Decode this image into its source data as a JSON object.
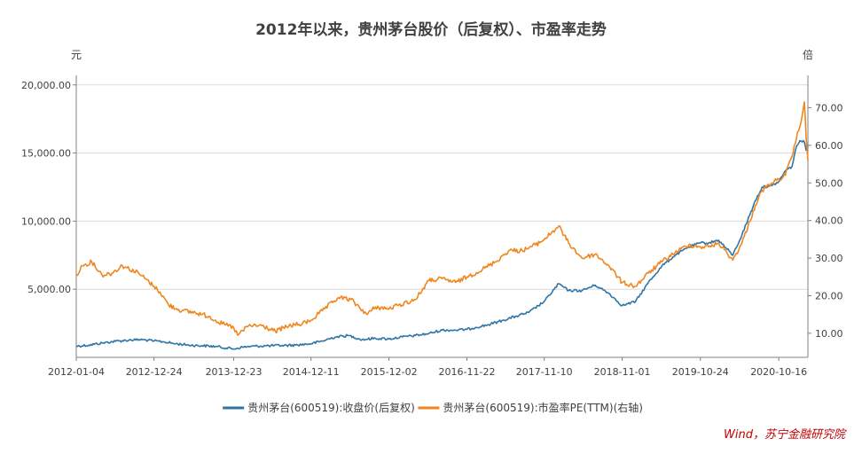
{
  "chart_data": {
    "type": "line",
    "title": "2012年以来，贵州茅台股价（后复权）、市盈率走势",
    "left_unit": "元",
    "right_unit": "倍",
    "x_ticks": [
      "2012-01-04",
      "2012-12-24",
      "2013-12-23",
      "2014-12-11",
      "2015-12-02",
      "2016-11-22",
      "2017-11-10",
      "2018-11-01",
      "2019-10-24",
      "2020-10-16"
    ],
    "left_ticks": [
      "5,000.00",
      "10,000.00",
      "15,000.00",
      "20,000.00"
    ],
    "right_ticks": [
      "10.00",
      "20.00",
      "30.00",
      "40.00",
      "50.00",
      "60.00",
      "70.00"
    ],
    "ylim_left": [
      0,
      20700
    ],
    "ylim_right": [
      3.6,
      78.6
    ],
    "x_range": [
      "2012-01-04",
      "2021-02-26"
    ],
    "legend_position": "bottom",
    "series": [
      {
        "name": "贵州茅台(600519):收盘价(后复权)",
        "axis": "left",
        "color": "#2e75a6",
        "points": [
          [
            "2012-01-04",
            820
          ],
          [
            "2012-03-01",
            900
          ],
          [
            "2012-05-01",
            1050
          ],
          [
            "2012-07-01",
            1180
          ],
          [
            "2012-09-01",
            1270
          ],
          [
            "2012-11-01",
            1300
          ],
          [
            "2012-12-24",
            1200
          ],
          [
            "2013-02-01",
            1150
          ],
          [
            "2013-04-01",
            1000
          ],
          [
            "2013-06-01",
            900
          ],
          [
            "2013-08-01",
            850
          ],
          [
            "2013-10-01",
            800
          ],
          [
            "2013-12-23",
            620
          ],
          [
            "2014-02-01",
            750
          ],
          [
            "2014-04-01",
            820
          ],
          [
            "2014-06-01",
            850
          ],
          [
            "2014-08-01",
            870
          ],
          [
            "2014-10-01",
            900
          ],
          [
            "2014-12-11",
            1000
          ],
          [
            "2015-02-01",
            1200
          ],
          [
            "2015-04-01",
            1500
          ],
          [
            "2015-06-01",
            1600
          ],
          [
            "2015-08-01",
            1300
          ],
          [
            "2015-10-01",
            1400
          ],
          [
            "2015-12-02",
            1350
          ],
          [
            "2016-02-01",
            1500
          ],
          [
            "2016-04-01",
            1600
          ],
          [
            "2016-06-01",
            1750
          ],
          [
            "2016-08-01",
            2000
          ],
          [
            "2016-10-01",
            2000
          ],
          [
            "2016-11-22",
            2050
          ],
          [
            "2017-01-01",
            2200
          ],
          [
            "2017-03-01",
            2400
          ],
          [
            "2017-05-01",
            2700
          ],
          [
            "2017-07-01",
            3000
          ],
          [
            "2017-09-01",
            3300
          ],
          [
            "2017-11-10",
            4100
          ],
          [
            "2018-01-15",
            5400
          ],
          [
            "2018-03-01",
            4900
          ],
          [
            "2018-05-01",
            4900
          ],
          [
            "2018-07-01",
            5300
          ],
          [
            "2018-09-01",
            4700
          ],
          [
            "2018-11-01",
            3800
          ],
          [
            "2019-01-01",
            4100
          ],
          [
            "2019-03-01",
            5500
          ],
          [
            "2019-05-01",
            6700
          ],
          [
            "2019-07-01",
            7500
          ],
          [
            "2019-09-01",
            8100
          ],
          [
            "2019-10-24",
            8400
          ],
          [
            "2019-12-01",
            8400
          ],
          [
            "2020-01-15",
            8600
          ],
          [
            "2020-03-20",
            7500
          ],
          [
            "2020-05-01",
            9000
          ],
          [
            "2020-07-01",
            11500
          ],
          [
            "2020-08-01",
            12500
          ],
          [
            "2020-09-15",
            12600
          ],
          [
            "2020-10-16",
            12900
          ],
          [
            "2020-11-15",
            13700
          ],
          [
            "2020-12-15",
            14000
          ],
          [
            "2021-01-05",
            15500
          ],
          [
            "2021-01-20",
            15900
          ],
          [
            "2021-02-10",
            15800
          ],
          [
            "2021-02-18",
            15200
          ],
          [
            "2021-02-26",
            15500
          ]
        ]
      },
      {
        "name": "贵州茅台(600519):市盈率PE(TTM)(右轴)",
        "axis": "right",
        "color": "#f0861e",
        "points": [
          [
            "2012-01-04",
            25.5
          ],
          [
            "2012-02-01",
            28
          ],
          [
            "2012-03-15",
            29
          ],
          [
            "2012-05-01",
            25.5
          ],
          [
            "2012-06-15",
            26
          ],
          [
            "2012-08-01",
            28
          ],
          [
            "2012-10-15",
            26
          ],
          [
            "2012-12-24",
            22.5
          ],
          [
            "2013-01-20",
            21
          ],
          [
            "2013-03-01",
            17.5
          ],
          [
            "2013-05-01",
            16
          ],
          [
            "2013-07-01",
            15.5
          ],
          [
            "2013-09-01",
            14.5
          ],
          [
            "2013-11-01",
            12.5
          ],
          [
            "2013-12-23",
            11.5
          ],
          [
            "2014-01-10",
            9.5
          ],
          [
            "2014-03-01",
            12
          ],
          [
            "2014-05-01",
            12
          ],
          [
            "2014-07-01",
            10.5
          ],
          [
            "2014-09-01",
            12
          ],
          [
            "2014-11-01",
            12.5
          ],
          [
            "2014-12-11",
            13.5
          ],
          [
            "2015-02-01",
            16
          ],
          [
            "2015-04-15",
            19.5
          ],
          [
            "2015-06-10",
            19
          ],
          [
            "2015-08-25",
            15
          ],
          [
            "2015-10-01",
            17
          ],
          [
            "2015-12-02",
            16.5
          ],
          [
            "2016-01-15",
            17.5
          ],
          [
            "2016-04-01",
            19
          ],
          [
            "2016-06-01",
            24
          ],
          [
            "2016-08-01",
            24.5
          ],
          [
            "2016-10-01",
            23.5
          ],
          [
            "2016-11-22",
            25
          ],
          [
            "2017-02-01",
            27
          ],
          [
            "2017-04-01",
            29
          ],
          [
            "2017-06-01",
            32
          ],
          [
            "2017-08-01",
            32
          ],
          [
            "2017-10-01",
            33.5
          ],
          [
            "2017-11-10",
            35
          ],
          [
            "2018-01-15",
            38.5
          ],
          [
            "2018-03-01",
            34
          ],
          [
            "2018-05-01",
            30
          ],
          [
            "2018-07-01",
            31
          ],
          [
            "2018-09-01",
            28
          ],
          [
            "2018-11-01",
            23.5
          ],
          [
            "2019-01-01",
            22.5
          ],
          [
            "2019-03-01",
            26
          ],
          [
            "2019-05-01",
            29
          ],
          [
            "2019-07-01",
            31.5
          ],
          [
            "2019-09-01",
            33.5
          ],
          [
            "2019-10-24",
            33
          ],
          [
            "2019-12-01",
            33
          ],
          [
            "2020-01-15",
            34
          ],
          [
            "2020-03-20",
            29.5
          ],
          [
            "2020-05-01",
            34
          ],
          [
            "2020-07-01",
            44
          ],
          [
            "2020-08-01",
            48
          ],
          [
            "2020-09-15",
            50
          ],
          [
            "2020-10-16",
            51
          ],
          [
            "2020-11-15",
            52
          ],
          [
            "2020-12-15",
            57
          ],
          [
            "2021-01-05",
            62
          ],
          [
            "2021-01-20",
            65
          ],
          [
            "2021-02-10",
            71.5
          ],
          [
            "2021-02-18",
            62
          ],
          [
            "2021-02-26",
            56
          ]
        ]
      }
    ],
    "source_note": "Wind，苏宁金融研究院"
  }
}
